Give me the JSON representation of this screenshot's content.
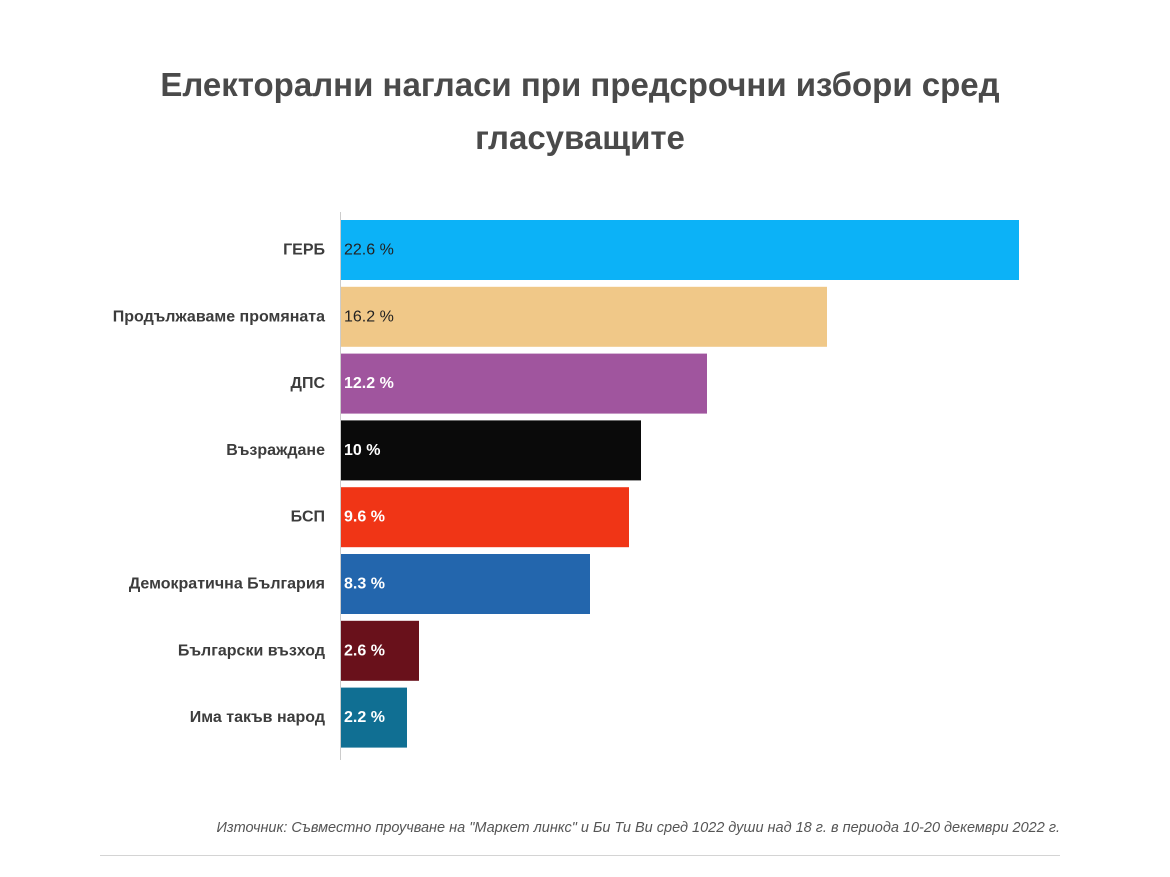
{
  "chart_data": {
    "type": "bar",
    "orientation": "horizontal",
    "title": "Електорални нагласи при предсрочни избори сред гласуващите",
    "categories": [
      "ГЕРБ",
      "Продължаваме промяната",
      "ДПС",
      "Възраждане",
      "БСП",
      "Демократична България",
      "Български възход",
      "Има такъв народ"
    ],
    "values": [
      22.6,
      16.2,
      12.2,
      10,
      9.6,
      8.3,
      2.6,
      2.2
    ],
    "value_labels": [
      "22.6 %",
      "16.2 %",
      "12.2 %",
      "10 %",
      "9.6 %",
      "8.3 %",
      "2.6 %",
      "2.2 %"
    ],
    "colors": [
      "#0cb2f7",
      "#f0c888",
      "#a0559e",
      "#0a0a0a",
      "#f03516",
      "#2366ad",
      "#69111b",
      "#106f93"
    ],
    "label_colors": [
      "#222222",
      "#222222",
      "#ffffff",
      "#ffffff",
      "#ffffff",
      "#ffffff",
      "#ffffff",
      "#ffffff"
    ],
    "label_bold": [
      false,
      false,
      true,
      true,
      true,
      true,
      true,
      true
    ],
    "xlim": [
      0,
      22.6
    ],
    "grid": false,
    "legend": "none",
    "xlabel": "",
    "ylabel": "",
    "source": "Източник: Съвместно проучване на \"Маркет линкс\" и Би Ти Ви сред 1022 души над 18 г. в периода 10-20 декември 2022 г."
  }
}
